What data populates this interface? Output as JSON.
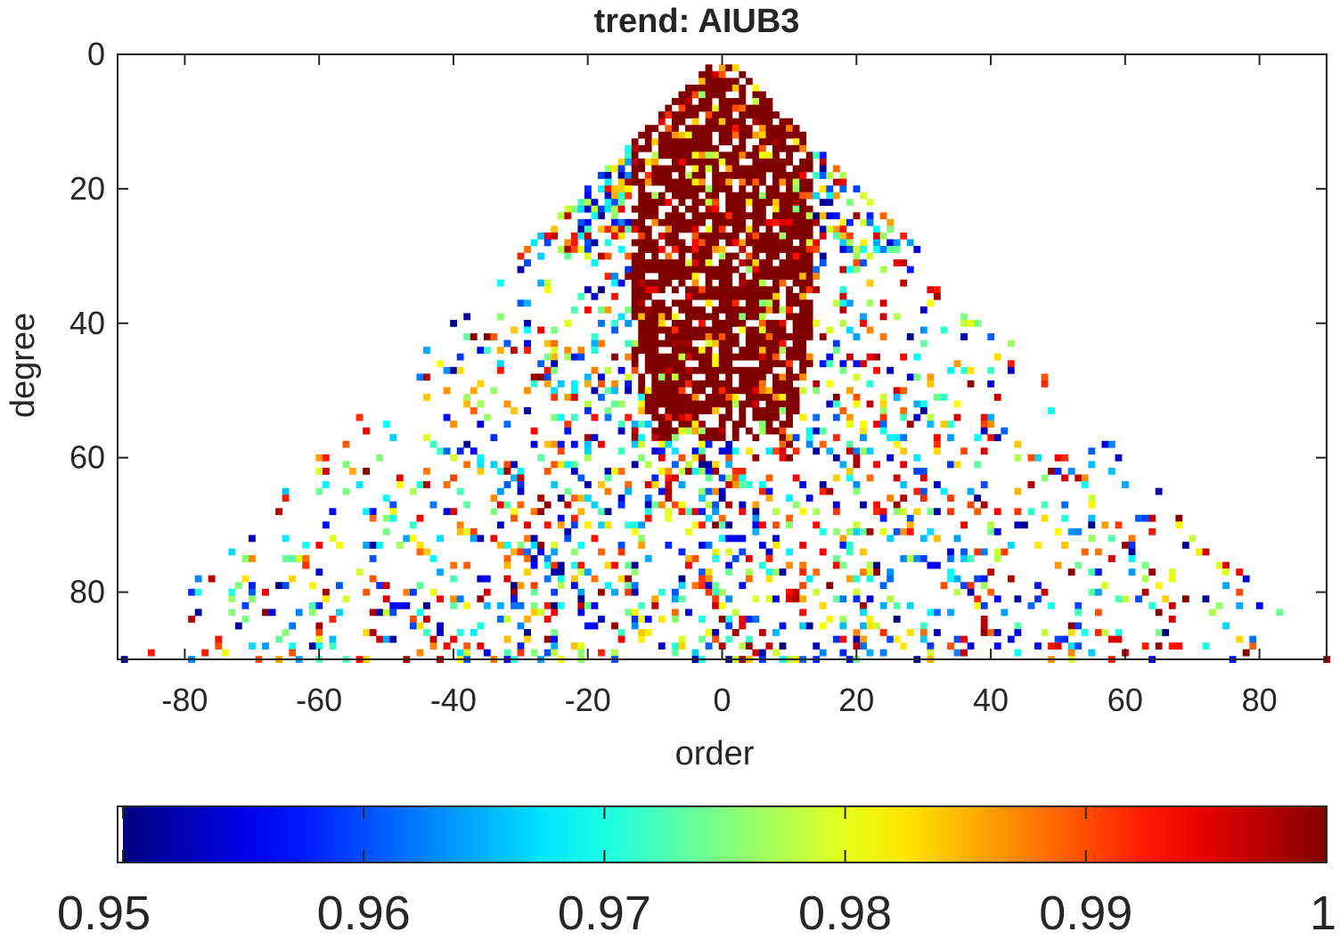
{
  "chart_data": {
    "type": "heatmap",
    "title": "trend: AIUB3",
    "xlabel": "order",
    "ylabel": "degree",
    "xlim": [
      -90,
      90
    ],
    "ylim": [
      0,
      90
    ],
    "y_reversed": true,
    "x_ticks": [
      "-80",
      "-60",
      "-40",
      "-20",
      "0",
      "20",
      "40",
      "60",
      "80"
    ],
    "x_tick_values": [
      -80,
      -60,
      -40,
      -20,
      0,
      20,
      40,
      60,
      80
    ],
    "y_ticks": [
      "0",
      "20",
      "40",
      "60",
      "80"
    ],
    "y_tick_values": [
      0,
      20,
      40,
      60,
      80
    ],
    "colormap": "jet",
    "clim": [
      0.95,
      1
    ],
    "colorbar": {
      "location": "bottom",
      "ticks": [
        "0.95",
        "0.96",
        "0.97",
        "0.98",
        "0.99",
        "1"
      ],
      "tick_values": [
        0.95,
        0.96,
        0.97,
        0.98,
        0.99,
        1.0
      ]
    },
    "cells_note": "Sparse triangular field over |order| <= degree, degree 2..90; dense near-1 values for degree < ~50 and |order| < ~15, scattered values elsewhere",
    "grid": false
  }
}
